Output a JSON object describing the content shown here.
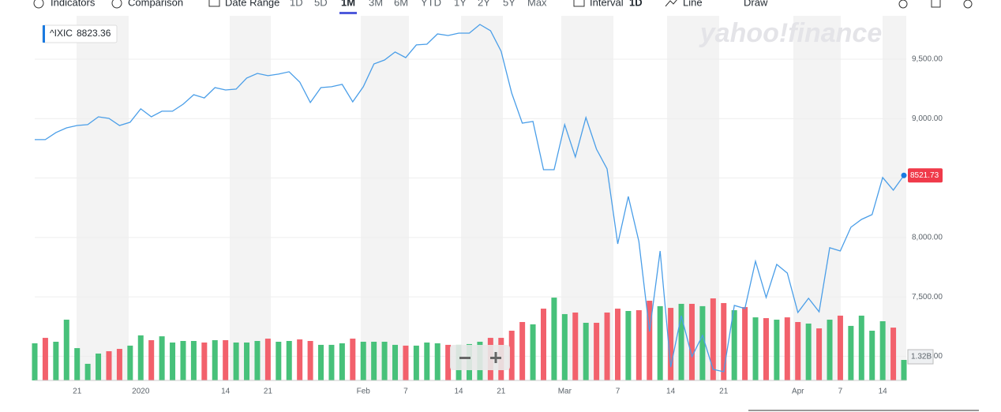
{
  "toolbar": {
    "items": [
      "Indicators",
      "Comparison",
      "Date Range",
      "1D",
      "5D",
      "1M",
      "3M",
      "6M",
      "YTD",
      "1Y",
      "2Y",
      "5Y",
      "Max",
      "Interval",
      "1D",
      "Line",
      "Draw"
    ],
    "active": 5
  },
  "chart_data": {
    "type": "line",
    "watermark": "yahoo!finance",
    "categories": [
      null,
      null,
      null,
      null,
      "21",
      null,
      null,
      null,
      null,
      null,
      "2020",
      null,
      null,
      null,
      null,
      null,
      null,
      null,
      "14",
      null,
      null,
      null,
      "21",
      null,
      null,
      null,
      null,
      null,
      null,
      null,
      null,
      "Feb",
      null,
      null,
      null,
      "7",
      null,
      null,
      null,
      null,
      "14",
      null,
      null,
      null,
      "21",
      null,
      null,
      null,
      null,
      null,
      "Mar",
      null,
      null,
      null,
      null,
      "7",
      null,
      null,
      null,
      null,
      "14",
      null,
      null,
      null,
      null,
      "21",
      null,
      null,
      null,
      null,
      null,
      null,
      "Apr",
      null,
      null,
      null,
      "7",
      null,
      null,
      null,
      "14",
      null,
      null
    ],
    "series": [
      {
        "name": "^IXIC",
        "color": "#4a9ee8",
        "values": [
          8823.36,
          8823,
          8883,
          8922,
          8942,
          8949,
          9015,
          9002,
          8942,
          8969,
          9082,
          9015,
          9062,
          9062,
          9121,
          9201,
          9174,
          9261,
          9241,
          9248,
          9341,
          9380,
          9361,
          9374,
          9394,
          9307,
          9135,
          9261,
          9268,
          9288,
          9141,
          9268,
          9460,
          9493,
          9560,
          9513,
          9620,
          9626,
          9712,
          9699,
          9719,
          9719,
          9792,
          9739,
          9566,
          9214,
          8962,
          8976,
          8570,
          8570,
          8949,
          8677,
          9009,
          8743,
          8577,
          7946,
          8345,
          7966,
          7209,
          7886,
          6910,
          7342,
          6997,
          7176,
          6890,
          6870,
          7428,
          7402,
          7800,
          7495,
          7773,
          7700,
          7369,
          7488,
          7375,
          7913,
          7886,
          8086,
          8152,
          8192,
          8504,
          8398,
          8521.73
        ]
      },
      {
        "type": "volume",
        "axis": "y2",
        "up_color": "#47c17a",
        "down_color": "#f2616c",
        "values": [
          2.39,
          2.74,
          2.49,
          3.91,
          2.08,
          1.07,
          1.73,
          1.88,
          2.03,
          2.24,
          2.9,
          2.59,
          2.84,
          2.44,
          2.54,
          2.54,
          2.44,
          2.59,
          2.59,
          2.44,
          2.44,
          2.54,
          2.69,
          2.49,
          2.54,
          2.64,
          2.54,
          2.29,
          2.29,
          2.39,
          2.69,
          2.49,
          2.49,
          2.49,
          2.29,
          2.24,
          2.24,
          2.44,
          2.39,
          2.29,
          2.29,
          2.34,
          2.49,
          2.74,
          2.74,
          3.2,
          3.76,
          3.61,
          4.62,
          5.33,
          4.27,
          4.37,
          3.71,
          3.71,
          4.37,
          4.62,
          4.47,
          4.52,
          5.13,
          4.78,
          4.67,
          4.93,
          4.93,
          4.78,
          5.28,
          4.98,
          4.52,
          4.72,
          4.06,
          4.01,
          3.91,
          4.06,
          3.76,
          3.66,
          3.35,
          3.91,
          4.17,
          3.51,
          4.17,
          3.2,
          3.81,
          3.4,
          1.32
        ],
        "last_label": "1.32B"
      }
    ],
    "ylim": [
      6797,
      9865
    ],
    "yticks": [
      {
        "value": 7000,
        "label": "7,000.00"
      },
      {
        "value": 7500,
        "label": "7,500.00"
      },
      {
        "value": 8000,
        "label": "8,000.00"
      },
      {
        "value": 8500,
        "label": "8,500.00"
      },
      {
        "value": 9000,
        "label": "9,000.00"
      },
      {
        "value": 9500,
        "label": "9,500.00"
      }
    ],
    "y2lim": [
      0,
      23.47
    ],
    "grid": true
  }
}
